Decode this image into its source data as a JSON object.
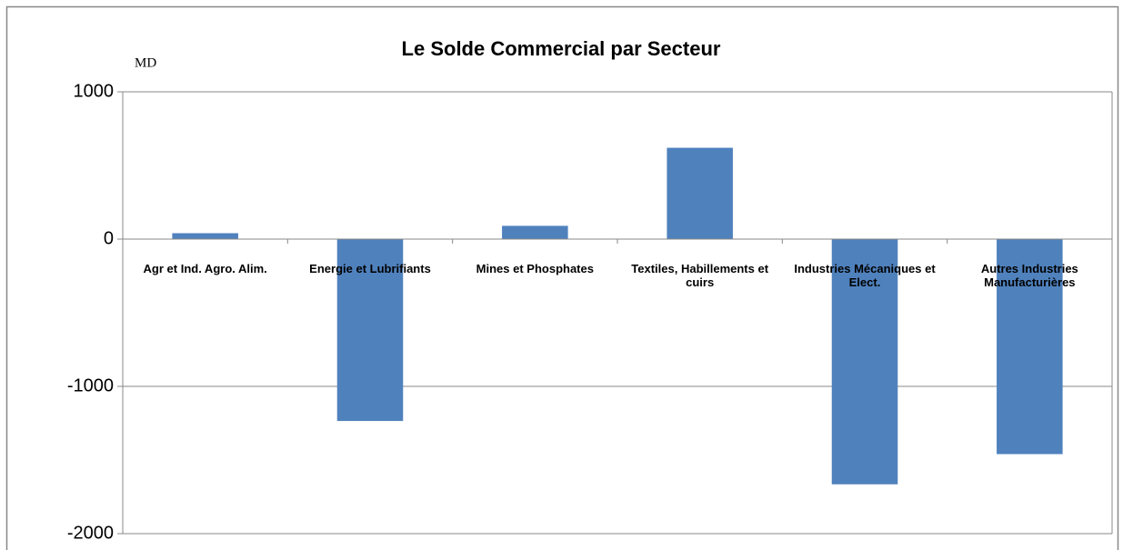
{
  "chart_data": {
    "type": "bar",
    "title": "Le Solde Commercial par Secteur",
    "y_label": "MD",
    "categories": [
      "Agr et Ind. Agro. Alim.",
      "Energie et Lubrifiants",
      "Mines et Phosphates",
      "Textiles, Habillements et cuirs",
      "Industries Mécaniques et Elect.",
      "Autres Industries Manufacturières"
    ],
    "values": [
      40,
      -1235,
      90,
      620,
      -1665,
      -1460
    ],
    "color": "#4f81bd",
    "ylim": [
      -2000,
      1000
    ],
    "yticks": [
      -2000,
      -1000,
      0,
      1000
    ],
    "grid": true
  }
}
